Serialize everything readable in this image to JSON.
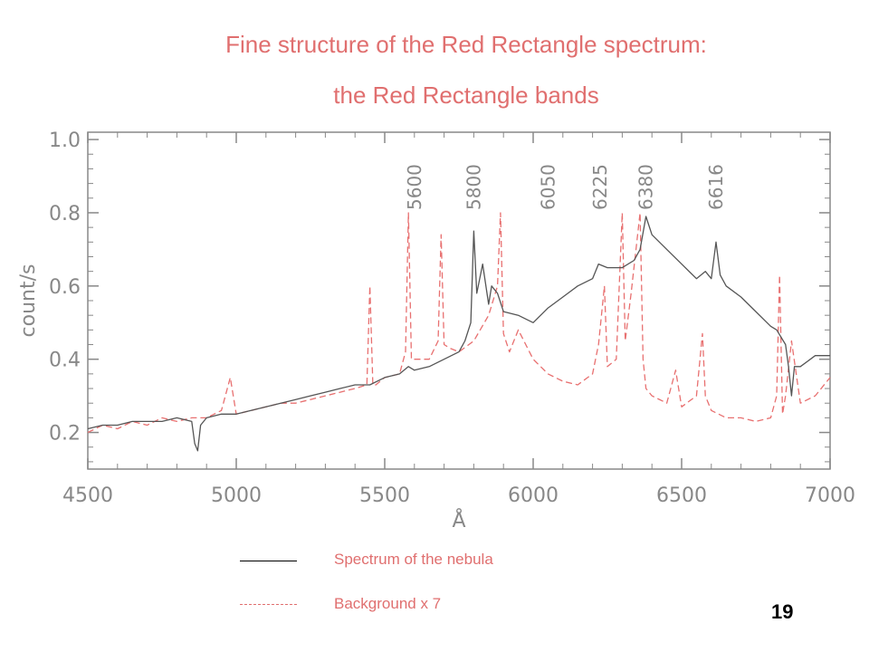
{
  "colors": {
    "title": "#e06f6f",
    "legend_text": "#e06f6f",
    "nebula": "#555555",
    "background": "#e87070",
    "axis": "#888888",
    "page_number": "#000000"
  },
  "title_line1": "Fine structure of the Red Rectangle spectrum:",
  "title_line2": "the Red Rectangle bands",
  "page_number": "19",
  "legend": [
    {
      "label": "Spectrum of the nebula",
      "style": "solid",
      "color": "#000000"
    },
    {
      "label": "Background x 7",
      "style": "dashed",
      "color": "#e06f6f"
    }
  ],
  "chart_data": {
    "type": "line",
    "title": "",
    "xlabel": "Å",
    "ylabel": "count/s",
    "xlim": [
      4500,
      7000
    ],
    "ylim": [
      0.1,
      1.02
    ],
    "x_ticks": [
      4500,
      5000,
      5500,
      6000,
      6500,
      7000
    ],
    "y_ticks": [
      0.2,
      0.4,
      0.6,
      0.8,
      1.0
    ],
    "y_tick_labels": [
      "0.2",
      "0.4",
      "0.6",
      "0.8",
      "1.0"
    ],
    "x_minor_step": 100,
    "y_minor_step": 0.04,
    "grid": false,
    "legend_position": "bottom",
    "annotations": [
      {
        "text": "5600",
        "x": 5600
      },
      {
        "text": "5800",
        "x": 5800
      },
      {
        "text": "6050",
        "x": 6050
      },
      {
        "text": "6225",
        "x": 6225
      },
      {
        "text": "6380",
        "x": 6380
      },
      {
        "text": "6616",
        "x": 6616
      }
    ],
    "series": [
      {
        "name": "Spectrum of the nebula",
        "style": "solid",
        "color": "#555555",
        "x": [
          4500,
          4550,
          4600,
          4650,
          4700,
          4750,
          4800,
          4850,
          4860,
          4870,
          4880,
          4900,
          4950,
          5000,
          5050,
          5100,
          5150,
          5200,
          5250,
          5300,
          5350,
          5400,
          5450,
          5500,
          5550,
          5580,
          5600,
          5650,
          5700,
          5750,
          5770,
          5790,
          5800,
          5810,
          5830,
          5850,
          5860,
          5880,
          5900,
          5950,
          6000,
          6050,
          6100,
          6150,
          6200,
          6220,
          6250,
          6300,
          6340,
          6360,
          6380,
          6400,
          6450,
          6500,
          6550,
          6580,
          6600,
          6616,
          6630,
          6650,
          6700,
          6750,
          6800,
          6820,
          6850,
          6860,
          6870,
          6880,
          6900,
          6950,
          7000
        ],
        "y": [
          0.21,
          0.22,
          0.22,
          0.23,
          0.23,
          0.23,
          0.24,
          0.23,
          0.17,
          0.15,
          0.22,
          0.24,
          0.25,
          0.25,
          0.26,
          0.27,
          0.28,
          0.29,
          0.3,
          0.31,
          0.32,
          0.33,
          0.33,
          0.35,
          0.36,
          0.38,
          0.37,
          0.38,
          0.4,
          0.42,
          0.45,
          0.5,
          0.75,
          0.58,
          0.66,
          0.55,
          0.6,
          0.58,
          0.53,
          0.52,
          0.5,
          0.54,
          0.57,
          0.6,
          0.62,
          0.66,
          0.65,
          0.65,
          0.67,
          0.7,
          0.79,
          0.74,
          0.7,
          0.66,
          0.62,
          0.64,
          0.62,
          0.72,
          0.63,
          0.6,
          0.57,
          0.53,
          0.49,
          0.48,
          0.44,
          0.38,
          0.3,
          0.38,
          0.38,
          0.41,
          0.41
        ]
      },
      {
        "name": "Background x 7",
        "style": "dashed",
        "color": "#e87070",
        "x": [
          4500,
          4550,
          4600,
          4650,
          4700,
          4750,
          4800,
          4850,
          4900,
          4950,
          4980,
          5000,
          5050,
          5100,
          5150,
          5200,
          5250,
          5300,
          5350,
          5400,
          5440,
          5450,
          5460,
          5470,
          5500,
          5550,
          5570,
          5580,
          5590,
          5600,
          5650,
          5680,
          5690,
          5700,
          5720,
          5750,
          5800,
          5850,
          5880,
          5890,
          5900,
          5920,
          5950,
          6000,
          6050,
          6100,
          6150,
          6200,
          6220,
          6240,
          6250,
          6280,
          6300,
          6310,
          6330,
          6360,
          6370,
          6380,
          6400,
          6450,
          6480,
          6500,
          6550,
          6570,
          6580,
          6600,
          6650,
          6700,
          6750,
          6800,
          6820,
          6830,
          6840,
          6850,
          6870,
          6900,
          6950,
          7000
        ],
        "y": [
          0.2,
          0.22,
          0.21,
          0.23,
          0.22,
          0.24,
          0.23,
          0.24,
          0.24,
          0.26,
          0.35,
          0.25,
          0.26,
          0.27,
          0.28,
          0.28,
          0.29,
          0.3,
          0.31,
          0.32,
          0.33,
          0.6,
          0.33,
          0.33,
          0.35,
          0.36,
          0.42,
          0.8,
          0.4,
          0.4,
          0.4,
          0.45,
          0.74,
          0.44,
          0.43,
          0.42,
          0.45,
          0.52,
          0.6,
          0.8,
          0.47,
          0.42,
          0.48,
          0.4,
          0.36,
          0.34,
          0.33,
          0.36,
          0.44,
          0.6,
          0.38,
          0.4,
          0.8,
          0.45,
          0.58,
          0.8,
          0.4,
          0.32,
          0.3,
          0.28,
          0.37,
          0.27,
          0.3,
          0.47,
          0.3,
          0.26,
          0.24,
          0.24,
          0.23,
          0.24,
          0.3,
          0.63,
          0.25,
          0.3,
          0.45,
          0.28,
          0.3,
          0.35
        ]
      }
    ]
  }
}
